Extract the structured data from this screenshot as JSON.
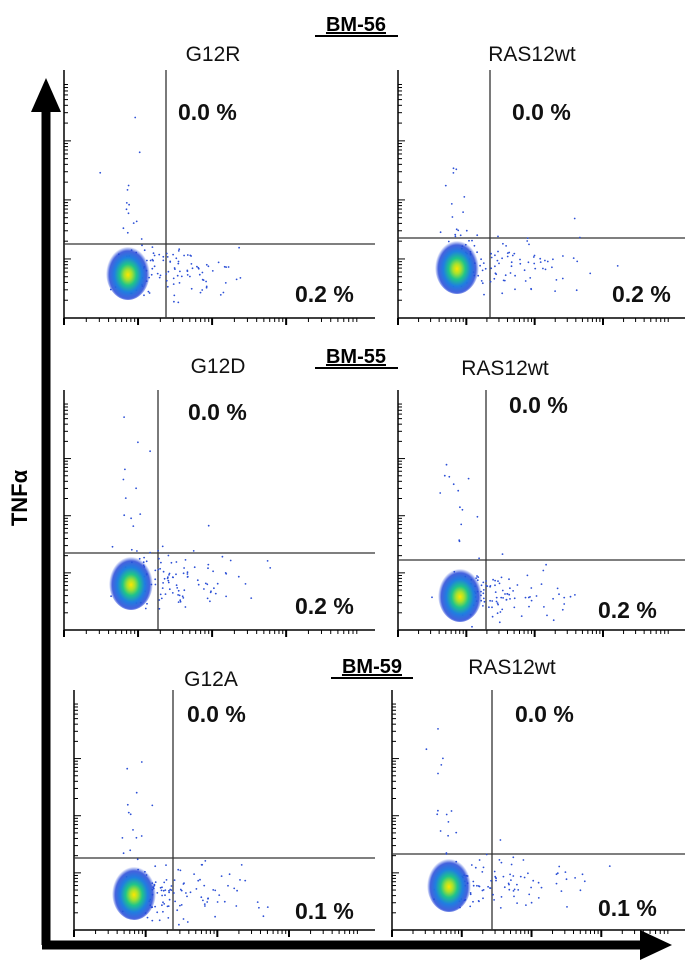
{
  "chart_data": {
    "type": "scatter",
    "y_axis_label": "TNFα",
    "donors": [
      {
        "name": "BM-56",
        "panels": [
          {
            "condition": "G12R",
            "upper_right_pct": "0.0 %",
            "lower_right_pct": "0.2 %"
          },
          {
            "condition": "RAS12wt",
            "upper_right_pct": "0.0 %",
            "lower_right_pct": "0.2 %"
          }
        ]
      },
      {
        "name": "BM-55",
        "panels": [
          {
            "condition": "G12D",
            "upper_right_pct": "0.0 %",
            "lower_right_pct": "0.2 %"
          },
          {
            "condition": "RAS12wt",
            "upper_right_pct": "0.0 %",
            "lower_right_pct": "0.2 %"
          }
        ]
      },
      {
        "name": "BM-59",
        "panels": [
          {
            "condition": "G12A",
            "upper_right_pct": "0.0 %",
            "lower_right_pct": "0.1 %"
          },
          {
            "condition": "RAS12wt",
            "upper_right_pct": "0.0 %",
            "lower_right_pct": "0.1 %"
          }
        ]
      }
    ]
  }
}
